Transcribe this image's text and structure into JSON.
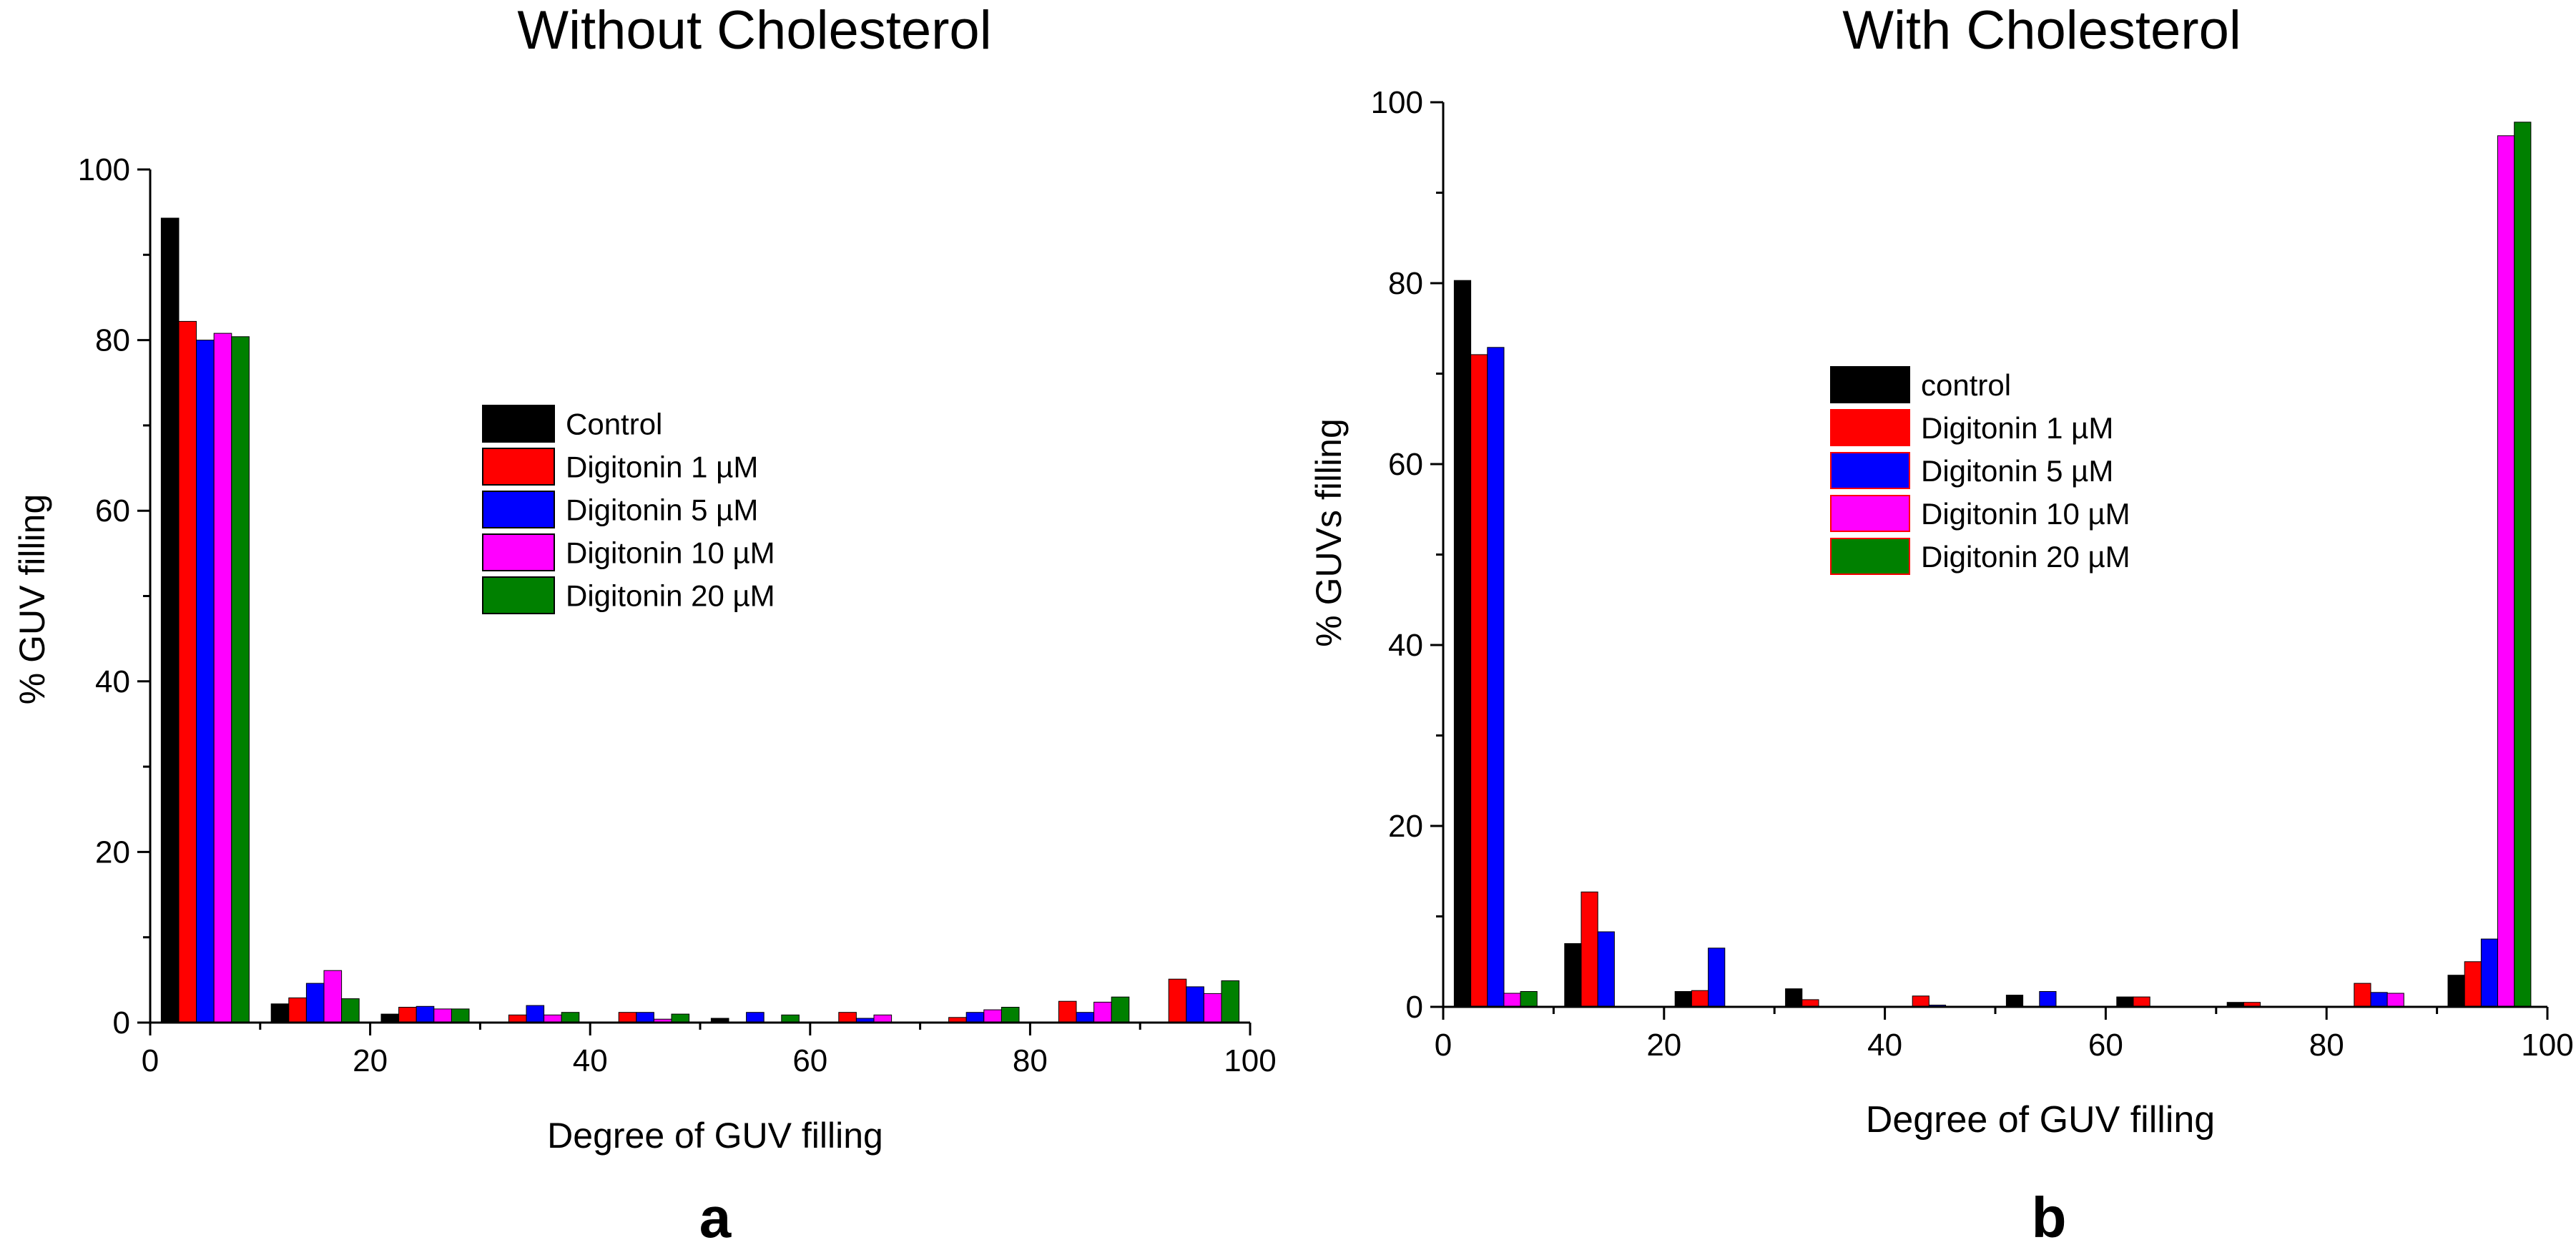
{
  "figure": {
    "colors": {
      "Control": "#000000",
      "control": "#000000",
      "Digitonin 1 µM": "#ff0000",
      "Digitonin 5 µM": "#0000ff",
      "Digitonin 10 µM": "#ff00ff",
      "Digitonin 20 µM": "#008000"
    }
  },
  "chart_data": [
    {
      "type": "bar",
      "panel_label": "a",
      "title": "Without Cholesterol",
      "xlabel": "Degree of GUV filling",
      "ylabel": "% GUV filling",
      "xlim": [
        0,
        100
      ],
      "ylim": [
        0,
        100
      ],
      "xticks": [
        0,
        20,
        40,
        60,
        80,
        100
      ],
      "yticks": [
        0,
        20,
        40,
        60,
        80,
        100
      ],
      "bar_width": 1.6,
      "categories": [
        "0-10",
        "10-20",
        "20-30",
        "30-40",
        "40-50",
        "50-60",
        "60-70",
        "70-80",
        "80-90",
        "90-100"
      ],
      "bin_starts": [
        1,
        11,
        21,
        31,
        41,
        51,
        61,
        71,
        81,
        91
      ],
      "series": [
        {
          "name": "Control",
          "values": [
            94.3,
            2.2,
            1.0,
            0.0,
            0.0,
            0.5,
            0.0,
            0.0,
            0.0,
            0.0
          ]
        },
        {
          "name": "Digitonin 1 µM",
          "values": [
            82.2,
            2.9,
            1.8,
            0.9,
            1.2,
            0.0,
            1.2,
            0.6,
            2.5,
            5.1
          ]
        },
        {
          "name": "Digitonin 5 µM",
          "values": [
            80.0,
            4.6,
            1.9,
            2.0,
            1.2,
            1.2,
            0.5,
            1.2,
            1.2,
            4.2
          ]
        },
        {
          "name": "Digitonin 10 µM",
          "values": [
            80.8,
            6.1,
            1.6,
            0.9,
            0.4,
            0.0,
            0.9,
            1.5,
            2.4,
            3.4
          ]
        },
        {
          "name": "Digitonin 20 µM",
          "values": [
            80.4,
            2.8,
            1.6,
            1.2,
            1.0,
            0.9,
            0.0,
            1.8,
            3.0,
            4.9
          ]
        }
      ],
      "legend": [
        "Control",
        "Digitonin 1 µM",
        "Digitonin 5 µM",
        "Digitonin 10 µM",
        "Digitonin 20 µM"
      ],
      "legend_position": "center-right"
    },
    {
      "type": "bar",
      "panel_label": "b",
      "title": "With Cholesterol",
      "xlabel": "Degree of GUV filling",
      "ylabel": "% GUVs filling",
      "xlim": [
        0,
        100
      ],
      "ylim": [
        0,
        100
      ],
      "xticks": [
        0,
        20,
        40,
        60,
        80,
        100
      ],
      "yticks": [
        0,
        20,
        40,
        60,
        80,
        100
      ],
      "bar_width": 1.5,
      "categories": [
        "0-10",
        "10-20",
        "20-30",
        "30-40",
        "40-50",
        "50-60",
        "60-70",
        "70-80",
        "80-90",
        "90-100"
      ],
      "bin_starts": [
        1,
        11,
        21,
        31,
        41,
        51,
        61,
        71,
        81,
        91
      ],
      "series": [
        {
          "name": "control",
          "values": [
            80.3,
            7.0,
            1.7,
            2.0,
            0.0,
            1.3,
            1.1,
            0.5,
            0.0,
            3.5
          ]
        },
        {
          "name": "Digitonin 1 µM",
          "values": [
            72.1,
            12.7,
            1.8,
            0.8,
            1.2,
            0.0,
            1.1,
            0.5,
            2.6,
            5.0
          ]
        },
        {
          "name": "Digitonin 5 µM",
          "values": [
            72.9,
            8.3,
            6.5,
            0.0,
            0.2,
            1.7,
            0.0,
            0.0,
            1.6,
            7.5
          ]
        },
        {
          "name": "Digitonin 10 µM",
          "values": [
            1.5,
            0.0,
            0.0,
            0.0,
            0.0,
            0.0,
            0.0,
            0.0,
            1.5,
            96.3
          ]
        },
        {
          "name": "Digitonin 20 µM",
          "values": [
            1.7,
            0.0,
            0.0,
            0.0,
            0.0,
            0.0,
            0.0,
            0.0,
            0.0,
            97.8
          ]
        }
      ],
      "legend": [
        "control",
        "Digitonin 1 µM",
        "Digitonin 5 µM",
        "Digitonin 10 µM",
        "Digitonin 20 µM"
      ],
      "legend_position": "center-right"
    }
  ]
}
